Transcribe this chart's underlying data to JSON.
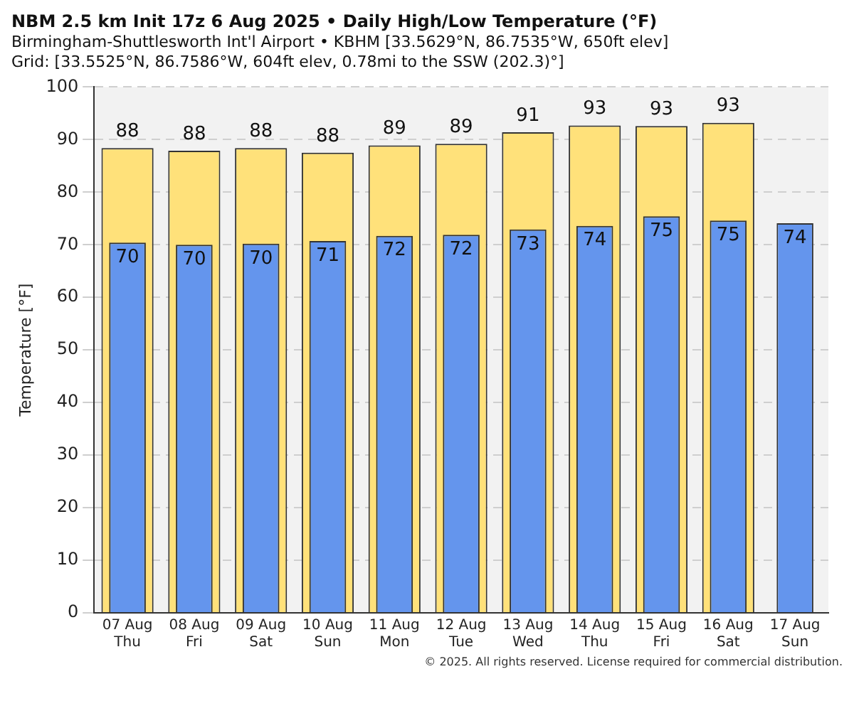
{
  "chart_data": {
    "type": "bar",
    "title": "NBM 2.5 km Init 17z 6 Aug 2025 • Daily High/Low Temperature (°F)",
    "subtitle": "Birmingham-Shuttlesworth Int'l Airport • KBHM [33.5629°N, 86.7535°W, 650ft elev]\nGrid: [33.5525°N, 86.7586°W, 604ft elev, 0.78mi to the SSW (202.3)°]",
    "ylabel": "Temperature [°F]",
    "categories": [
      "07 Aug\nThu",
      "08 Aug\nFri",
      "09 Aug\nSat",
      "10 Aug\nSun",
      "11 Aug\nMon",
      "12 Aug\nTue",
      "13 Aug\nWed",
      "14 Aug\nThu",
      "15 Aug\nFri",
      "16 Aug\nSat",
      "17 Aug\nSun"
    ],
    "series": [
      {
        "color": "#ffe17a",
        "values": [
          88.4,
          87.9,
          88.4,
          87.5,
          88.9,
          89.2,
          91.4,
          92.7,
          92.6,
          93.2,
          null
        ],
        "value_labels": [
          "88",
          "88",
          "88",
          "88",
          "89",
          "89",
          "91",
          "93",
          "93",
          "93",
          null
        ]
      },
      {
        "color": "#6495ed",
        "values": [
          70.4,
          70.0,
          70.2,
          70.7,
          71.7,
          71.9,
          72.9,
          73.6,
          75.4,
          74.6,
          74.1
        ],
        "value_labels": [
          "70",
          "70",
          "70",
          "71",
          "72",
          "72",
          "73",
          "74",
          "75",
          "75",
          "74"
        ]
      }
    ],
    "ylim": [
      0,
      100
    ],
    "yticks": [
      0,
      10,
      20,
      30,
      40,
      50,
      60,
      70,
      80,
      90,
      100
    ],
    "grid": "y",
    "annotations": [
      "© 2025. All rights reserved. License required for commercial distribution."
    ]
  }
}
